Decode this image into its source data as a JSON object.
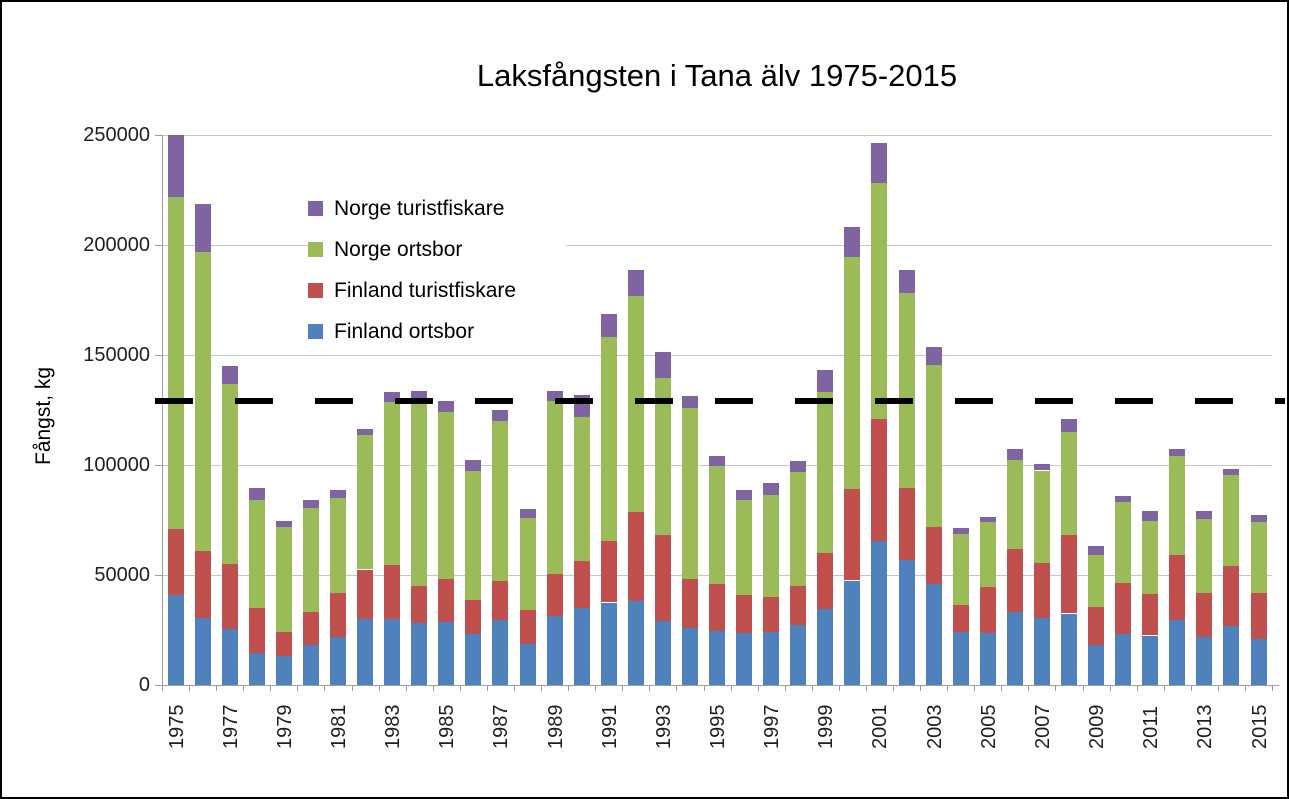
{
  "figure": {
    "title": "Laksfångsten i Tana älv 1975-2015",
    "y_axis_title": "Fångst, kg"
  },
  "legend": {
    "items": [
      {
        "label": "Norge turistfiskare",
        "color": "#8064A2"
      },
      {
        "label": "Norge ortsbor",
        "color": "#9BBB59"
      },
      {
        "label": "Finland turistfiskare",
        "color": "#C0504D"
      },
      {
        "label": "Finland ortsbor",
        "color": "#4F81BD"
      }
    ]
  },
  "chart_data": {
    "type": "bar",
    "stacked": true,
    "title": "Laksfångsten i Tana älv 1975-2015",
    "xlabel": "",
    "ylabel": "Fångst, kg",
    "ylim": [
      0,
      250000
    ],
    "ytick_interval": 50000,
    "ytick_labels": [
      "0",
      "50000",
      "100000",
      "150000",
      "200000",
      "250000"
    ],
    "grid": true,
    "legend_position": "upper-left-inside",
    "categories": [
      1975,
      1976,
      1977,
      1978,
      1979,
      1980,
      1981,
      1982,
      1983,
      1984,
      1985,
      1986,
      1987,
      1988,
      1989,
      1990,
      1991,
      1992,
      1993,
      1994,
      1995,
      1996,
      1997,
      1998,
      1999,
      2000,
      2001,
      2002,
      2003,
      2004,
      2005,
      2006,
      2007,
      2008,
      2009,
      2010,
      2011,
      2012,
      2013,
      2014,
      2015
    ],
    "xtick_labels_shown": [
      "1975",
      "1977",
      "1979",
      "1981",
      "1983",
      "1985",
      "1987",
      "1989",
      "1991",
      "1993",
      "1995",
      "1997",
      "1999",
      "2001",
      "2003",
      "2005",
      "2007",
      "2009",
      "2011",
      "2013",
      "2015"
    ],
    "series": [
      {
        "name": "Finland ortsbor",
        "color": "#4F81BD",
        "values": [
          41000,
          30500,
          25500,
          14500,
          13000,
          18000,
          22000,
          30000,
          30000,
          28000,
          28500,
          23000,
          29500,
          18500,
          31500,
          35000,
          37500,
          38000,
          29000,
          26000,
          24500,
          23500,
          24000,
          27500,
          34500,
          47500,
          65500,
          57000,
          46000,
          24000,
          23500,
          33000,
          30500,
          32500,
          18000,
          23000,
          22500,
          29500,
          22000,
          27000,
          21000
        ]
      },
      {
        "name": "Finland turistfiskare",
        "color": "#C0504D",
        "values": [
          30000,
          30500,
          29500,
          20500,
          11000,
          15000,
          20000,
          22500,
          24500,
          17000,
          19500,
          15500,
          18000,
          15500,
          19000,
          21500,
          28000,
          40500,
          39000,
          22000,
          21500,
          17500,
          16000,
          17500,
          25500,
          41500,
          55500,
          32500,
          26000,
          12500,
          21000,
          29000,
          25000,
          35500,
          17500,
          23500,
          19000,
          29500,
          20000,
          27000,
          21000
        ]
      },
      {
        "name": "Norge ortsbor",
        "color": "#9BBB59",
        "values": [
          151000,
          136000,
          82000,
          49000,
          48000,
          47500,
          43000,
          61000,
          74000,
          83000,
          76000,
          59000,
          72500,
          42000,
          78500,
          65500,
          92500,
          98500,
          71500,
          78000,
          53500,
          43000,
          46500,
          52000,
          73000,
          105500,
          107000,
          88500,
          73500,
          32000,
          29500,
          40500,
          42000,
          47000,
          23500,
          36500,
          33000,
          45000,
          33500,
          41500,
          32000
        ]
      },
      {
        "name": "Norge turistfiskare",
        "color": "#8064A2",
        "values": [
          28000,
          21500,
          8000,
          5500,
          2500,
          3500,
          3500,
          3000,
          4500,
          5500,
          5000,
          5000,
          5000,
          4000,
          4500,
          10000,
          10500,
          11500,
          12000,
          5500,
          4500,
          4500,
          5500,
          5000,
          10000,
          13500,
          18500,
          10500,
          8000,
          3000,
          2500,
          5000,
          3000,
          6000,
          4000,
          3000,
          4500,
          3500,
          3500,
          2500,
          3500
        ]
      }
    ],
    "reference_line": {
      "value": 129000,
      "style": "dashed",
      "color": "#000000"
    }
  }
}
